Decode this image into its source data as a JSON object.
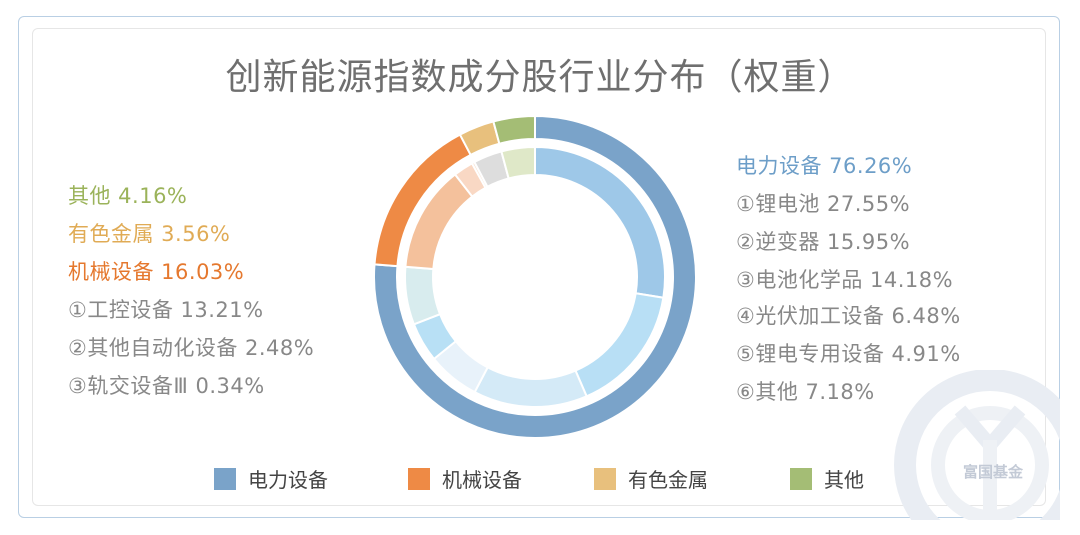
{
  "title": "创新能源指数成分股行业分布（权重）",
  "chart_data": {
    "type": "pie",
    "outer": [
      {
        "name": "电力设备",
        "value": 76.26,
        "color": "#7aa3c9"
      },
      {
        "name": "机械设备",
        "value": 16.03,
        "color": "#ee8a45"
      },
      {
        "name": "有色金属",
        "value": 3.56,
        "color": "#e8c07d"
      },
      {
        "name": "其他",
        "value": 4.16,
        "color": "#a4bd75"
      }
    ],
    "inner": [
      {
        "name": "锂电池",
        "value": 27.55,
        "color": "#9ec8e8"
      },
      {
        "name": "逆变器",
        "value": 15.95,
        "color": "#b8dff5"
      },
      {
        "name": "电池化学品",
        "value": 14.18,
        "color": "#d4eaf7"
      },
      {
        "name": "光伏加工设备",
        "value": 6.48,
        "color": "#e8f2fa"
      },
      {
        "name": "锂电专用设备",
        "value": 4.91,
        "color": "#b8e0f5"
      },
      {
        "name": "电力设备其他",
        "value": 7.18,
        "color": "#d8ecee"
      },
      {
        "name": "工控设备",
        "value": 13.21,
        "color": "#f4c19c"
      },
      {
        "name": "其他自动化设备",
        "value": 2.48,
        "color": "#f9d8c4"
      },
      {
        "name": "轨交设备Ⅲ",
        "value": 0.34,
        "color": "#f7e2d2"
      },
      {
        "name": "有色金属",
        "value": 3.56,
        "color": "#dddddd"
      },
      {
        "name": "其他",
        "value": 4.16,
        "color": "#dfe8c8"
      }
    ]
  },
  "labels_right": [
    {
      "text": "电力设备 76.26%",
      "color": "#6d9ec8"
    },
    {
      "text": "①锂电池 27.55%",
      "color": "#888888"
    },
    {
      "text": "②逆变器 15.95%",
      "color": "#888888"
    },
    {
      "text": "③电池化学品 14.18%",
      "color": "#888888"
    },
    {
      "text": "④光伏加工设备 6.48%",
      "color": "#888888"
    },
    {
      "text": "⑤锂电专用设备 4.91%",
      "color": "#888888"
    },
    {
      "text": "⑥其他 7.18%",
      "color": "#888888"
    }
  ],
  "labels_left": [
    {
      "text": "其他 4.16%",
      "color": "#9bb35a"
    },
    {
      "text": "有色金属 3.56%",
      "color": "#e0ab55"
    },
    {
      "text": "机械设备 16.03%",
      "color": "#e5782e"
    },
    {
      "text": "①工控设备 13.21%",
      "color": "#888888"
    },
    {
      "text": "②其他自动化设备 2.48%",
      "color": "#888888"
    },
    {
      "text": "③轨交设备Ⅲ 0.34%",
      "color": "#888888"
    }
  ],
  "legend": [
    {
      "label": "电力设备",
      "color": "#7aa3c9"
    },
    {
      "label": "机械设备",
      "color": "#ee8a45"
    },
    {
      "label": "有色金属",
      "color": "#e8c07d"
    },
    {
      "label": "其他",
      "color": "#a4bd75"
    }
  ],
  "watermark": "富国基金"
}
